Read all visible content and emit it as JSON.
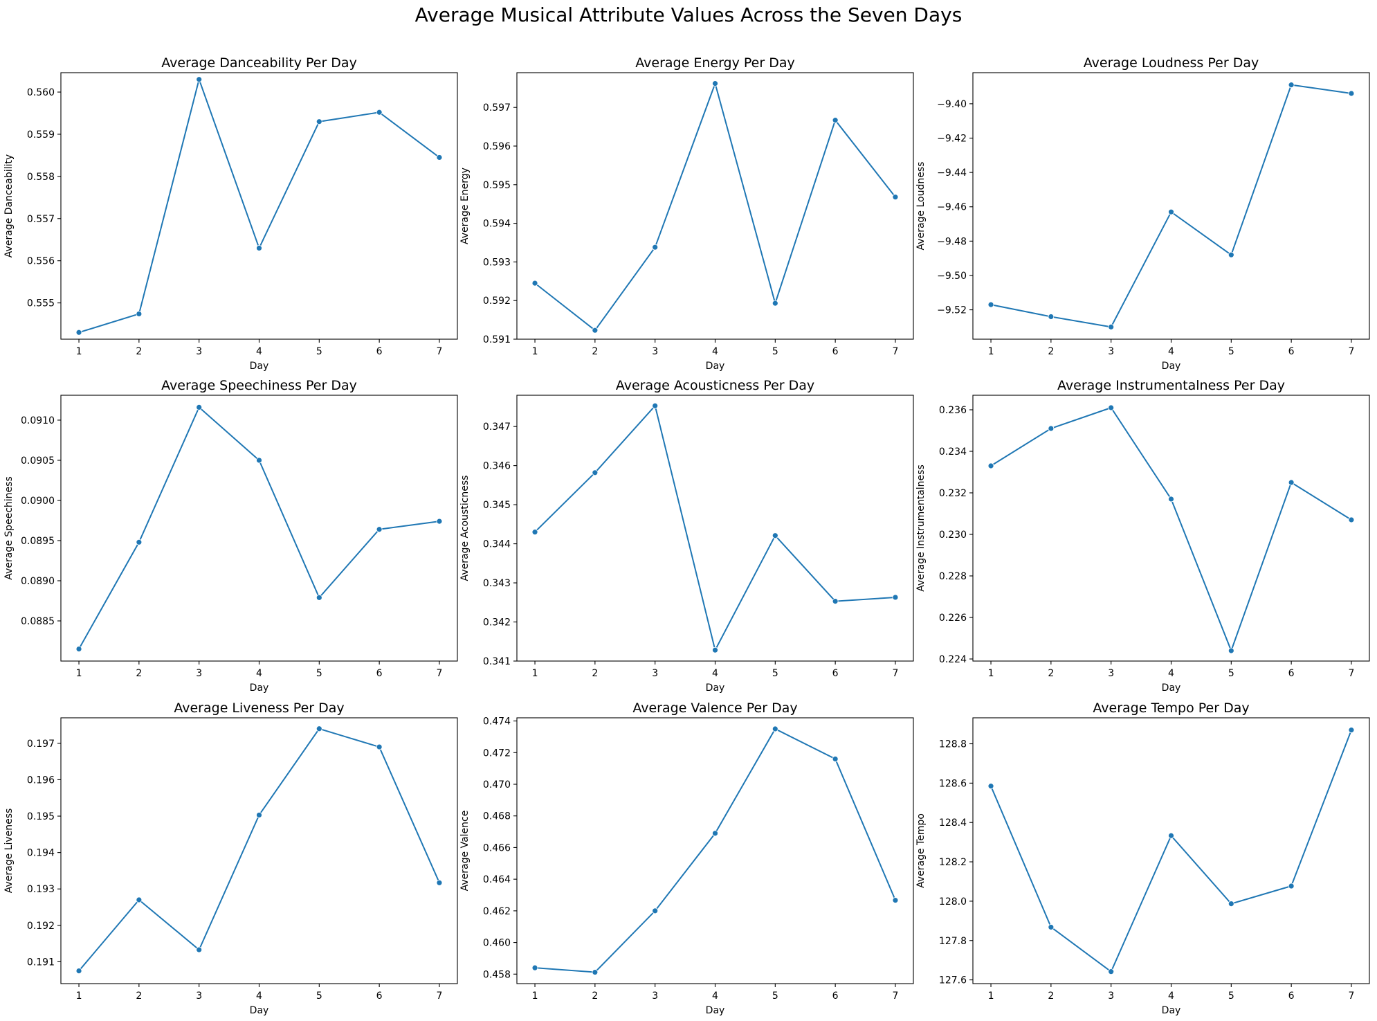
{
  "figure_title": "Average Musical Attribute Values Across the Seven Days",
  "colors": {
    "line": "#1f77b4",
    "axes": "#000000",
    "background": "#ffffff"
  },
  "chart_data": [
    {
      "type": "line",
      "title": "Average Danceability Per Day",
      "xlabel": "Day",
      "ylabel": "Average Danceability",
      "x": [
        1,
        2,
        3,
        4,
        5,
        6,
        7
      ],
      "values": [
        0.5543,
        0.55474,
        0.5603,
        0.5563,
        0.5593,
        0.55952,
        0.55845
      ],
      "xticks": [
        "1",
        "2",
        "3",
        "4",
        "5",
        "6",
        "7"
      ],
      "yticks": [
        0.555,
        0.556,
        0.557,
        0.558,
        0.559,
        0.56
      ],
      "ytick_labels": [
        "0.555",
        "0.556",
        "0.557",
        "0.558",
        "0.559",
        "0.560"
      ],
      "ylim": [
        0.55414,
        0.56046
      ],
      "xlim": [
        0.7,
        7.3
      ]
    },
    {
      "type": "line",
      "title": "Average Energy Per Day",
      "xlabel": "Day",
      "ylabel": "Average Energy",
      "x": [
        1,
        2,
        3,
        4,
        5,
        6,
        7
      ],
      "values": [
        0.59245,
        0.59123,
        0.59338,
        0.59762,
        0.59193,
        0.59667,
        0.59468
      ],
      "xticks": [
        "1",
        "2",
        "3",
        "4",
        "5",
        "6",
        "7"
      ],
      "yticks": [
        0.591,
        0.592,
        0.593,
        0.594,
        0.595,
        0.596,
        0.597
      ],
      "ytick_labels": [
        "0.591",
        "0.592",
        "0.593",
        "0.594",
        "0.595",
        "0.596",
        "0.597"
      ],
      "ylim": [
        0.591,
        0.5979
      ],
      "xlim": [
        0.7,
        7.3
      ]
    },
    {
      "type": "line",
      "title": "Average Loudness Per Day",
      "xlabel": "Day",
      "ylabel": "Average Loudness",
      "x": [
        1,
        2,
        3,
        4,
        5,
        6,
        7
      ],
      "values": [
        -9.517,
        -9.524,
        -9.53,
        -9.463,
        -9.488,
        -9.389,
        -9.394
      ],
      "xticks": [
        "1",
        "2",
        "3",
        "4",
        "5",
        "6",
        "7"
      ],
      "yticks": [
        -9.52,
        -9.5,
        -9.48,
        -9.46,
        -9.44,
        -9.42,
        -9.4
      ],
      "ytick_labels": [
        "−9.52",
        "−9.50",
        "−9.48",
        "−9.46",
        "−9.44",
        "−9.42",
        "−9.40"
      ],
      "ylim": [
        -9.5371,
        -9.3819
      ],
      "xlim": [
        0.7,
        7.3
      ]
    },
    {
      "type": "line",
      "title": "Average Speechiness Per Day",
      "xlabel": "Day",
      "ylabel": "Average Speechiness",
      "x": [
        1,
        2,
        3,
        4,
        5,
        6,
        7
      ],
      "values": [
        0.08815,
        0.08948,
        0.09116,
        0.0905,
        0.08879,
        0.08964,
        0.08974
      ],
      "xticks": [
        "1",
        "2",
        "3",
        "4",
        "5",
        "6",
        "7"
      ],
      "yticks": [
        0.0885,
        0.089,
        0.0895,
        0.09,
        0.0905,
        0.091
      ],
      "ytick_labels": [
        "0.0885",
        "0.0890",
        "0.0895",
        "0.0900",
        "0.0905",
        "0.0910"
      ],
      "ylim": [
        0.088,
        0.09131
      ],
      "xlim": [
        0.7,
        7.3
      ]
    },
    {
      "type": "line",
      "title": "Average Acousticness Per Day",
      "xlabel": "Day",
      "ylabel": "Average Acousticness",
      "x": [
        1,
        2,
        3,
        4,
        5,
        6,
        7
      ],
      "values": [
        0.3443,
        0.34582,
        0.34753,
        0.34128,
        0.34421,
        0.34253,
        0.34263
      ],
      "xticks": [
        "1",
        "2",
        "3",
        "4",
        "5",
        "6",
        "7"
      ],
      "yticks": [
        0.341,
        0.342,
        0.343,
        0.344,
        0.345,
        0.346,
        0.347
      ],
      "ytick_labels": [
        "0.341",
        "0.342",
        "0.343",
        "0.344",
        "0.345",
        "0.346",
        "0.347"
      ],
      "ylim": [
        0.341,
        0.3478
      ],
      "xlim": [
        0.7,
        7.3
      ]
    },
    {
      "type": "line",
      "title": "Average Instrumentalness Per Day",
      "xlabel": "Day",
      "ylabel": "Average Instrumentalness",
      "x": [
        1,
        2,
        3,
        4,
        5,
        6,
        7
      ],
      "values": [
        0.2333,
        0.2351,
        0.2361,
        0.2317,
        0.2244,
        0.2325,
        0.2307
      ],
      "xticks": [
        "1",
        "2",
        "3",
        "4",
        "5",
        "6",
        "7"
      ],
      "yticks": [
        0.224,
        0.226,
        0.228,
        0.23,
        0.232,
        0.234,
        0.236
      ],
      "ytick_labels": [
        "0.224",
        "0.226",
        "0.228",
        "0.230",
        "0.232",
        "0.234",
        "0.236"
      ],
      "ylim": [
        0.2239,
        0.2367
      ],
      "xlim": [
        0.7,
        7.3
      ]
    },
    {
      "type": "line",
      "title": "Average Liveness Per Day",
      "xlabel": "Day",
      "ylabel": "Average Liveness",
      "x": [
        1,
        2,
        3,
        4,
        5,
        6,
        7
      ],
      "values": [
        0.19075,
        0.1927,
        0.19133,
        0.19503,
        0.1974,
        0.1969,
        0.19317
      ],
      "xticks": [
        "1",
        "2",
        "3",
        "4",
        "5",
        "6",
        "7"
      ],
      "yticks": [
        0.191,
        0.192,
        0.193,
        0.194,
        0.195,
        0.196,
        0.197
      ],
      "ytick_labels": [
        "0.191",
        "0.192",
        "0.193",
        "0.194",
        "0.195",
        "0.196",
        "0.197"
      ],
      "ylim": [
        0.1904,
        0.1977
      ],
      "xlim": [
        0.7,
        7.3
      ]
    },
    {
      "type": "line",
      "title": "Average Valence Per Day",
      "xlabel": "Day",
      "ylabel": "Average Valence",
      "x": [
        1,
        2,
        3,
        4,
        5,
        6,
        7
      ],
      "values": [
        0.4584,
        0.45812,
        0.462,
        0.4669,
        0.4735,
        0.4716,
        0.46267
      ],
      "xticks": [
        "1",
        "2",
        "3",
        "4",
        "5",
        "6",
        "7"
      ],
      "yticks": [
        0.458,
        0.46,
        0.462,
        0.464,
        0.466,
        0.468,
        0.47,
        0.472,
        0.474
      ],
      "ytick_labels": [
        "0.458",
        "0.460",
        "0.462",
        "0.464",
        "0.466",
        "0.468",
        "0.470",
        "0.472",
        "0.474"
      ],
      "ylim": [
        0.4574,
        0.4742
      ],
      "xlim": [
        0.7,
        7.3
      ]
    },
    {
      "type": "line",
      "title": "Average Tempo Per Day",
      "xlabel": "Day",
      "ylabel": "Average Tempo",
      "x": [
        1,
        2,
        3,
        4,
        5,
        6,
        7
      ],
      "values": [
        128.585,
        127.868,
        127.642,
        128.333,
        127.987,
        128.077,
        128.87
      ],
      "xticks": [
        "1",
        "2",
        "3",
        "4",
        "5",
        "6",
        "7"
      ],
      "yticks": [
        127.6,
        127.8,
        128.0,
        128.2,
        128.4,
        128.6,
        128.8
      ],
      "ytick_labels": [
        "127.6",
        "127.8",
        "128.0",
        "128.2",
        "128.4",
        "128.6",
        "128.8"
      ],
      "ylim": [
        127.581,
        128.932
      ],
      "xlim": [
        0.7,
        7.3
      ]
    }
  ]
}
